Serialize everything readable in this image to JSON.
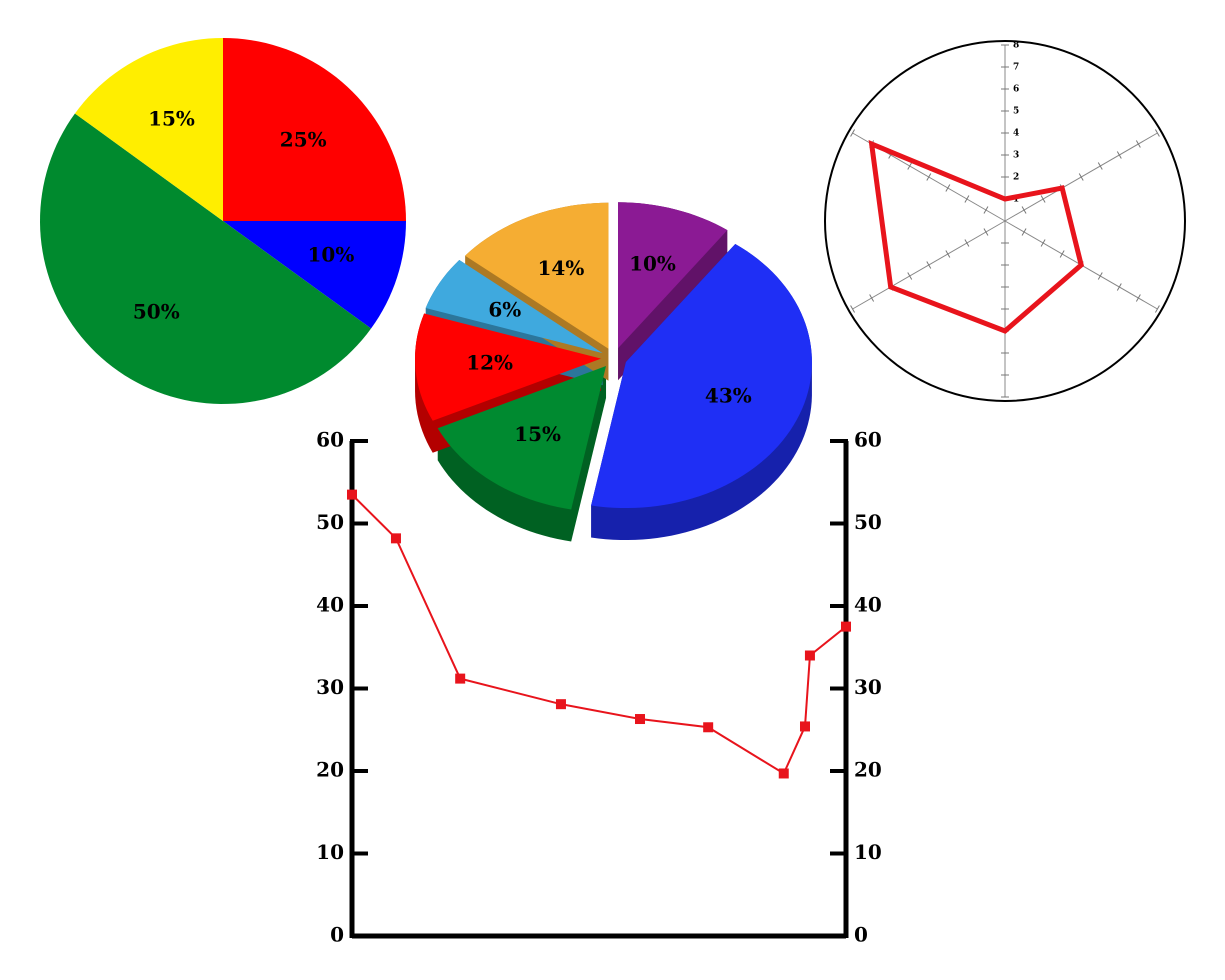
{
  "chart_data": [
    {
      "type": "pie",
      "values": [
        25,
        10,
        50,
        15
      ],
      "value_labels": [
        "25%",
        "10%",
        "50%",
        "15%"
      ],
      "colors": [
        "#ff0000",
        "#0000ff",
        "#008a2e",
        "#ffee00"
      ]
    },
    {
      "type": "pie3d",
      "values": [
        10,
        43,
        15,
        12,
        6,
        14
      ],
      "value_labels": [
        "10%",
        "43%",
        "15%",
        "12%",
        "6%",
        "14%"
      ],
      "colors": [
        "#8b1a94",
        "#1f2ff5",
        "#008a30",
        "#ff0000",
        "#3fa9de",
        "#f5ad33"
      ]
    },
    {
      "type": "radar",
      "series": [
        {
          "color": "#e8141c",
          "values": [
            1,
            3,
            4,
            5,
            6,
            7
          ]
        }
      ],
      "rlim": [
        0,
        8
      ],
      "rticks": [
        1,
        2,
        3,
        4,
        5,
        6,
        7,
        8
      ]
    },
    {
      "type": "line",
      "x": [
        0,
        8.9,
        21.9,
        42.3,
        58.3,
        72.1,
        87.4,
        91.7,
        92.7,
        100
      ],
      "xlim": [
        0,
        100
      ],
      "series": [
        {
          "color": "#e8141c",
          "values": [
            53.5,
            48.2,
            31.2,
            28.1,
            26.3,
            25.3,
            19.7,
            25.4,
            34,
            37.5
          ]
        }
      ],
      "ylim": [
        0,
        60
      ],
      "yticks": [
        0,
        10,
        20,
        30,
        40,
        50,
        60
      ],
      "y2lim": [
        0,
        60
      ],
      "y2ticks": [
        0,
        10,
        20,
        30,
        40,
        50,
        60
      ]
    }
  ]
}
